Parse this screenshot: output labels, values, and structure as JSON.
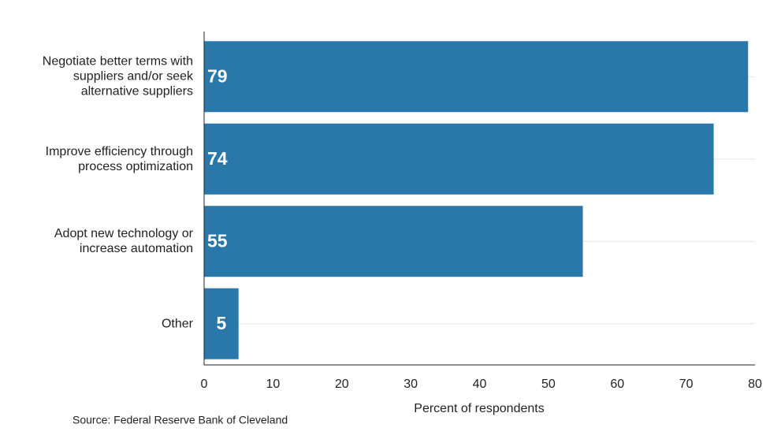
{
  "chart_data": {
    "type": "hbar",
    "categories": [
      "Negotiate better terms with suppliers and/or seek alternative suppliers",
      "Improve efficiency through process optimization",
      "Adopt new technology or increase automation",
      "Other"
    ],
    "values": [
      79,
      74,
      55,
      5
    ],
    "color": "#2a77a9",
    "xlim": [
      0,
      80
    ],
    "xticks": [
      0,
      10,
      20,
      30,
      40,
      50,
      60,
      70,
      80
    ],
    "xlabel": "Percent of respondents",
    "source": "Source: Federal Reserve Bank of Cleveland"
  }
}
